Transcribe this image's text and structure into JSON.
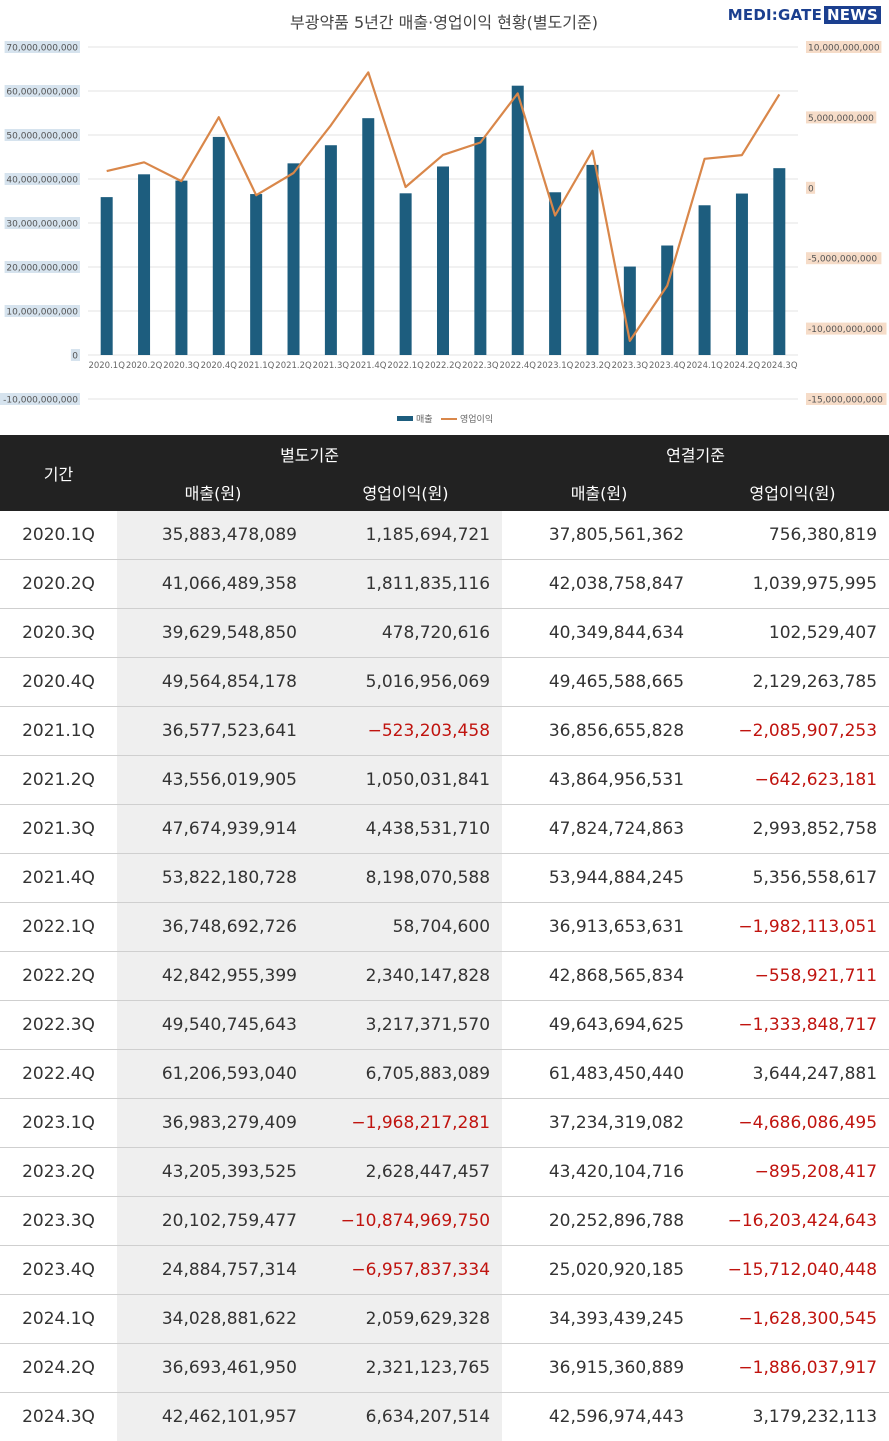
{
  "logo": {
    "part1": "MEDI:GATE",
    "part2": "NEWS"
  },
  "chart_data": {
    "type": "bar",
    "title": "부광약품 5년간 매출·영업이익 현황(별도기준)",
    "categories": [
      "2020.1Q",
      "2020.2Q",
      "2020.3Q",
      "2020.4Q",
      "2021.1Q",
      "2021.2Q",
      "2021.3Q",
      "2021.4Q",
      "2022.1Q",
      "2022.2Q",
      "2022.3Q",
      "2022.4Q",
      "2023.1Q",
      "2023.2Q",
      "2023.3Q",
      "2023.4Q",
      "2024.1Q",
      "2024.2Q",
      "2024.3Q"
    ],
    "series": [
      {
        "name": "매출",
        "type": "bar",
        "axis": "left",
        "color": "#1d5d7e",
        "values": [
          35883478089,
          41066489358,
          39629548850,
          49564854178,
          36577523641,
          43556019905,
          47674939914,
          53822180728,
          36748692726,
          42842955399,
          49540745643,
          61206593040,
          36983279409,
          43205393525,
          20102759477,
          24884757314,
          34028881622,
          36693461950,
          42462101957
        ]
      },
      {
        "name": "영업이익",
        "type": "line",
        "axis": "right",
        "color": "#d9874a",
        "values": [
          1185694721,
          1811835116,
          478720616,
          5016956069,
          -523203458,
          1050031841,
          4438531710,
          8198070588,
          58704600,
          2340147828,
          3217371570,
          6705883089,
          -1968217281,
          2628447457,
          -10874969750,
          -6957837334,
          2059629328,
          2321123765,
          6634207514
        ]
      }
    ],
    "left_axis": {
      "min": -10000000000,
      "max": 70000000000,
      "step": 10000000000,
      "tick_labels": [
        "-10,000,000,000",
        "0",
        "10,000,000,000",
        "20,000,000,000",
        "30,000,000,000",
        "40,000,000,000",
        "50,000,000,000",
        "60,000,000,000",
        "70,000,000,000"
      ],
      "label_bg": "#d6e3ee"
    },
    "right_axis": {
      "min": -15000000000,
      "max": 10000000000,
      "step": 5000000000,
      "tick_labels": [
        "-15,000,000,000",
        "-10,000,000,000",
        "-5,000,000,000",
        "0",
        "5,000,000,000",
        "10,000,000,000"
      ],
      "label_bg": "#f6dcc8"
    },
    "grid": true,
    "legend_position": "bottom"
  },
  "table": {
    "period_header": "기간",
    "group_headers": [
      "별도기준",
      "연결기준"
    ],
    "sub_headers": [
      "매출(원)",
      "영업이익(원)",
      "매출(원)",
      "영업이익(원)"
    ],
    "negative_color": "#c0140f",
    "rows": [
      [
        "2020.1Q",
        "35,883,478,089",
        "1,185,694,721",
        "37,805,561,362",
        "756,380,819"
      ],
      [
        "2020.2Q",
        "41,066,489,358",
        "1,811,835,116",
        "42,038,758,847",
        "1,039,975,995"
      ],
      [
        "2020.3Q",
        "39,629,548,850",
        "478,720,616",
        "40,349,844,634",
        "102,529,407"
      ],
      [
        "2020.4Q",
        "49,564,854,178",
        "5,016,956,069",
        "49,465,588,665",
        "2,129,263,785"
      ],
      [
        "2021.1Q",
        "36,577,523,641",
        "-523,203,458",
        "36,856,655,828",
        "-2,085,907,253"
      ],
      [
        "2021.2Q",
        "43,556,019,905",
        "1,050,031,841",
        "43,864,956,531",
        "-642,623,181"
      ],
      [
        "2021.3Q",
        "47,674,939,914",
        "4,438,531,710",
        "47,824,724,863",
        "2,993,852,758"
      ],
      [
        "2021.4Q",
        "53,822,180,728",
        "8,198,070,588",
        "53,944,884,245",
        "5,356,558,617"
      ],
      [
        "2022.1Q",
        "36,748,692,726",
        "58,704,600",
        "36,913,653,631",
        "-1,982,113,051"
      ],
      [
        "2022.2Q",
        "42,842,955,399",
        "2,340,147,828",
        "42,868,565,834",
        "-558,921,711"
      ],
      [
        "2022.3Q",
        "49,540,745,643",
        "3,217,371,570",
        "49,643,694,625",
        "-1,333,848,717"
      ],
      [
        "2022.4Q",
        "61,206,593,040",
        "6,705,883,089",
        "61,483,450,440",
        "3,644,247,881"
      ],
      [
        "2023.1Q",
        "36,983,279,409",
        "-1,968,217,281",
        "37,234,319,082",
        "-4,686,086,495"
      ],
      [
        "2023.2Q",
        "43,205,393,525",
        "2,628,447,457",
        "43,420,104,716",
        "-895,208,417"
      ],
      [
        "2023.3Q",
        "20,102,759,477",
        "-10,874,969,750",
        "20,252,896,788",
        "-16,203,424,643"
      ],
      [
        "2023.4Q",
        "24,884,757,314",
        "-6,957,837,334",
        "25,020,920,185",
        "-15,712,040,448"
      ],
      [
        "2024.1Q",
        "34,028,881,622",
        "2,059,629,328",
        "34,393,439,245",
        "-1,628,300,545"
      ],
      [
        "2024.2Q",
        "36,693,461,950",
        "2,321,123,765",
        "36,915,360,889",
        "-1,886,037,917"
      ],
      [
        "2024.3Q",
        "42,462,101,957",
        "6,634,207,514",
        "42,596,974,443",
        "3,179,232,113"
      ]
    ]
  }
}
